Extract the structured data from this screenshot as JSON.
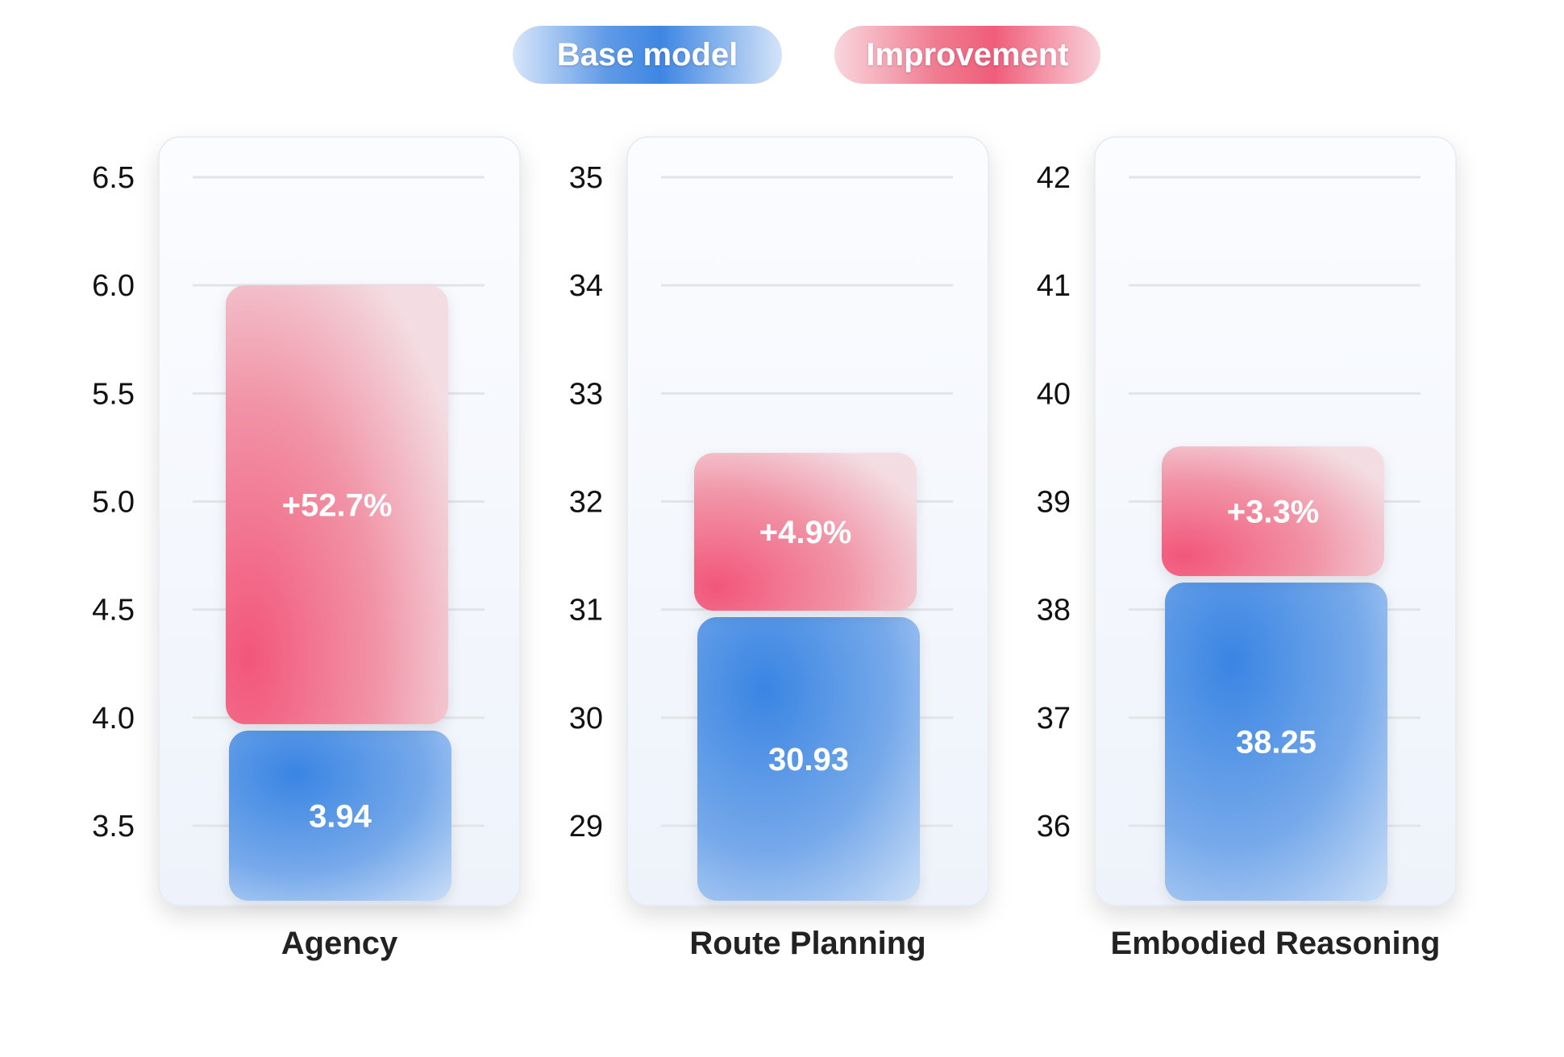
{
  "legend": {
    "base_label": "Base model",
    "improvement_label": "Improvement"
  },
  "colors": {
    "base": "#3e86e3",
    "base_light": "#c4dbf6",
    "improvement": "#f2577a",
    "improvement_light": "#f1d6dc",
    "panel_bg": "#f1f5fc",
    "gridline": "#e2e4e8"
  },
  "chart_data": [
    {
      "type": "bar",
      "category": "Agency",
      "yticks": [
        "6.5",
        "6.0",
        "5.5",
        "5.0",
        "4.5",
        "4.0",
        "3.5"
      ],
      "ylim": [
        3.5,
        6.5
      ],
      "series": [
        {
          "name": "Base model",
          "value": 3.94,
          "label": "3.94"
        },
        {
          "name": "Improvement",
          "value": 6.0,
          "label": "+52.7%"
        }
      ]
    },
    {
      "type": "bar",
      "category": "Route Planning",
      "yticks": [
        "35",
        "34",
        "33",
        "32",
        "31",
        "30",
        "29"
      ],
      "ylim": [
        29,
        35
      ],
      "series": [
        {
          "name": "Base model",
          "value": 30.93,
          "label": "30.93"
        },
        {
          "name": "Improvement",
          "value": 32.45,
          "label": "+4.9%"
        }
      ]
    },
    {
      "type": "bar",
      "category": "Embodied Reasoning",
      "yticks": [
        "42",
        "41",
        "40",
        "39",
        "38",
        "37",
        "36"
      ],
      "ylim": [
        36,
        42
      ],
      "series": [
        {
          "name": "Base model",
          "value": 38.25,
          "label": "38.25"
        },
        {
          "name": "Improvement",
          "value": 39.51,
          "label": "+3.3%"
        }
      ]
    }
  ]
}
